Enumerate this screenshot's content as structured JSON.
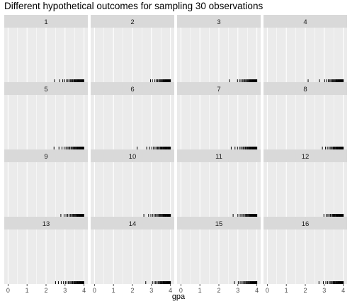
{
  "title": "Different hypothetical outcomes for sampling 30 observations",
  "colors": {
    "panel_bg": "#ebebeb",
    "strip_bg": "#d9d9d9",
    "grid": "#ffffff",
    "rug": "#000000",
    "axis_text": "#4d4d4d"
  },
  "chart_data": {
    "type": "rug",
    "facet_variable": "sample",
    "facets": [
      {
        "label": "1",
        "gpa": [
          2.45,
          2.72,
          2.88,
          2.98,
          3.08,
          3.15,
          3.22,
          3.28,
          3.33,
          3.38,
          3.42,
          3.47,
          3.51,
          3.55,
          3.58,
          3.62,
          3.65,
          3.68,
          3.71,
          3.74,
          3.77,
          3.8,
          3.83,
          3.86,
          3.88,
          3.91,
          3.93,
          3.95,
          3.97,
          3.99
        ]
      },
      {
        "label": "2",
        "gpa": [
          2.95,
          3.05,
          3.18,
          3.25,
          3.32,
          3.38,
          3.43,
          3.48,
          3.52,
          3.56,
          3.6,
          3.63,
          3.66,
          3.69,
          3.72,
          3.74,
          3.77,
          3.79,
          3.81,
          3.83,
          3.85,
          3.87,
          3.89,
          3.91,
          3.93,
          3.94,
          3.96,
          3.97,
          3.99,
          4.0
        ]
      },
      {
        "label": "3",
        "gpa": [
          2.55,
          2.98,
          3.08,
          3.16,
          3.24,
          3.3,
          3.36,
          3.41,
          3.46,
          3.5,
          3.54,
          3.58,
          3.62,
          3.65,
          3.68,
          3.71,
          3.74,
          3.76,
          3.79,
          3.81,
          3.83,
          3.85,
          3.87,
          3.89,
          3.91,
          3.93,
          3.95,
          3.96,
          3.98,
          4.0
        ]
      },
      {
        "label": "4",
        "gpa": [
          2.15,
          2.75,
          3.02,
          3.12,
          3.21,
          3.28,
          3.34,
          3.39,
          3.44,
          3.48,
          3.52,
          3.56,
          3.6,
          3.63,
          3.66,
          3.69,
          3.72,
          3.75,
          3.77,
          3.8,
          3.82,
          3.84,
          3.86,
          3.88,
          3.9,
          3.92,
          3.94,
          3.96,
          3.98,
          4.0
        ]
      },
      {
        "label": "5",
        "gpa": [
          2.42,
          2.68,
          2.84,
          2.95,
          3.05,
          3.12,
          3.19,
          3.25,
          3.31,
          3.36,
          3.41,
          3.45,
          3.49,
          3.53,
          3.57,
          3.61,
          3.64,
          3.67,
          3.7,
          3.73,
          3.76,
          3.79,
          3.82,
          3.85,
          3.87,
          3.9,
          3.92,
          3.95,
          3.97,
          3.99
        ]
      },
      {
        "label": "6",
        "gpa": [
          2.25,
          2.75,
          2.9,
          3.02,
          3.11,
          3.19,
          3.26,
          3.32,
          3.37,
          3.42,
          3.47,
          3.51,
          3.55,
          3.59,
          3.62,
          3.66,
          3.69,
          3.72,
          3.75,
          3.77,
          3.8,
          3.82,
          3.85,
          3.87,
          3.89,
          3.91,
          3.93,
          3.95,
          3.97,
          4.0
        ]
      },
      {
        "label": "7",
        "gpa": [
          2.65,
          2.85,
          2.98,
          3.08,
          3.16,
          3.23,
          3.29,
          3.35,
          3.4,
          3.45,
          3.49,
          3.53,
          3.57,
          3.61,
          3.64,
          3.67,
          3.7,
          3.73,
          3.76,
          3.79,
          3.81,
          3.84,
          3.86,
          3.88,
          3.9,
          3.92,
          3.94,
          3.96,
          3.98,
          4.0
        ]
      },
      {
        "label": "8",
        "gpa": [
          2.9,
          3.06,
          3.16,
          3.24,
          3.31,
          3.37,
          3.42,
          3.47,
          3.51,
          3.55,
          3.59,
          3.62,
          3.65,
          3.68,
          3.71,
          3.74,
          3.76,
          3.79,
          3.81,
          3.83,
          3.85,
          3.87,
          3.89,
          3.91,
          3.93,
          3.94,
          3.96,
          3.97,
          3.99,
          4.0
        ]
      },
      {
        "label": "9",
        "gpa": [
          2.78,
          2.95,
          3.05,
          3.14,
          3.21,
          3.28,
          3.34,
          3.39,
          3.44,
          3.48,
          3.52,
          3.56,
          3.6,
          3.63,
          3.66,
          3.69,
          3.72,
          3.74,
          3.77,
          3.79,
          3.81,
          3.83,
          3.85,
          3.87,
          3.89,
          3.91,
          3.93,
          3.95,
          3.97,
          3.99
        ]
      },
      {
        "label": "10",
        "gpa": [
          2.6,
          2.85,
          2.97,
          3.07,
          3.15,
          3.22,
          3.28,
          3.34,
          3.39,
          3.44,
          3.48,
          3.52,
          3.56,
          3.6,
          3.63,
          3.66,
          3.69,
          3.72,
          3.75,
          3.78,
          3.8,
          3.83,
          3.85,
          3.87,
          3.9,
          3.92,
          3.94,
          3.96,
          3.98,
          4.0
        ]
      },
      {
        "label": "11",
        "gpa": [
          2.75,
          3.0,
          3.12,
          3.2,
          3.27,
          3.33,
          3.39,
          3.44,
          3.48,
          3.52,
          3.56,
          3.6,
          3.63,
          3.66,
          3.69,
          3.72,
          3.75,
          3.77,
          3.8,
          3.82,
          3.84,
          3.86,
          3.88,
          3.9,
          3.92,
          3.94,
          3.95,
          3.97,
          3.99,
          4.0
        ]
      },
      {
        "label": "12",
        "gpa": [
          2.98,
          3.1,
          3.19,
          3.26,
          3.32,
          3.38,
          3.43,
          3.47,
          3.51,
          3.55,
          3.59,
          3.62,
          3.65,
          3.68,
          3.71,
          3.73,
          3.76,
          3.78,
          3.8,
          3.82,
          3.84,
          3.86,
          3.88,
          3.9,
          3.92,
          3.94,
          3.96,
          3.97,
          3.99,
          4.0
        ]
      },
      {
        "label": "13",
        "gpa": [
          2.5,
          2.65,
          2.8,
          2.92,
          3.02,
          3.1,
          3.17,
          3.24,
          3.3,
          3.35,
          3.4,
          3.45,
          3.49,
          3.53,
          3.57,
          3.61,
          3.64,
          3.67,
          3.7,
          3.73,
          3.76,
          3.79,
          3.82,
          3.85,
          3.87,
          3.9,
          3.92,
          3.95,
          3.97,
          3.99
        ]
      },
      {
        "label": "14",
        "gpa": [
          2.7,
          3.05,
          3.14,
          3.22,
          3.29,
          3.35,
          3.4,
          3.45,
          3.49,
          3.53,
          3.57,
          3.61,
          3.64,
          3.67,
          3.7,
          3.73,
          3.76,
          3.78,
          3.81,
          3.83,
          3.85,
          3.87,
          3.89,
          3.91,
          3.93,
          3.94,
          3.96,
          3.97,
          3.99,
          4.0
        ]
      },
      {
        "label": "15",
        "gpa": [
          2.82,
          3.02,
          3.12,
          3.2,
          3.27,
          3.33,
          3.38,
          3.43,
          3.48,
          3.52,
          3.56,
          3.59,
          3.63,
          3.66,
          3.69,
          3.72,
          3.74,
          3.77,
          3.79,
          3.82,
          3.84,
          3.86,
          3.88,
          3.9,
          3.92,
          3.94,
          3.95,
          3.97,
          3.99,
          4.0
        ]
      },
      {
        "label": "16",
        "gpa": [
          2.72,
          2.95,
          3.08,
          3.17,
          3.25,
          3.31,
          3.37,
          3.42,
          3.47,
          3.51,
          3.55,
          3.59,
          3.62,
          3.66,
          3.69,
          3.72,
          3.74,
          3.77,
          3.79,
          3.82,
          3.84,
          3.86,
          3.88,
          3.9,
          3.92,
          3.94,
          3.95,
          3.97,
          3.99,
          4.0
        ]
      }
    ],
    "xlabel": "gpa",
    "ylabel": "",
    "xlim": [
      -0.2,
      4.2
    ],
    "x_ticks": [
      0,
      1,
      2,
      3,
      4
    ],
    "x_tick_labels": [
      "0",
      "1",
      "2",
      "3",
      "4"
    ],
    "grid": true,
    "legend": "none"
  }
}
